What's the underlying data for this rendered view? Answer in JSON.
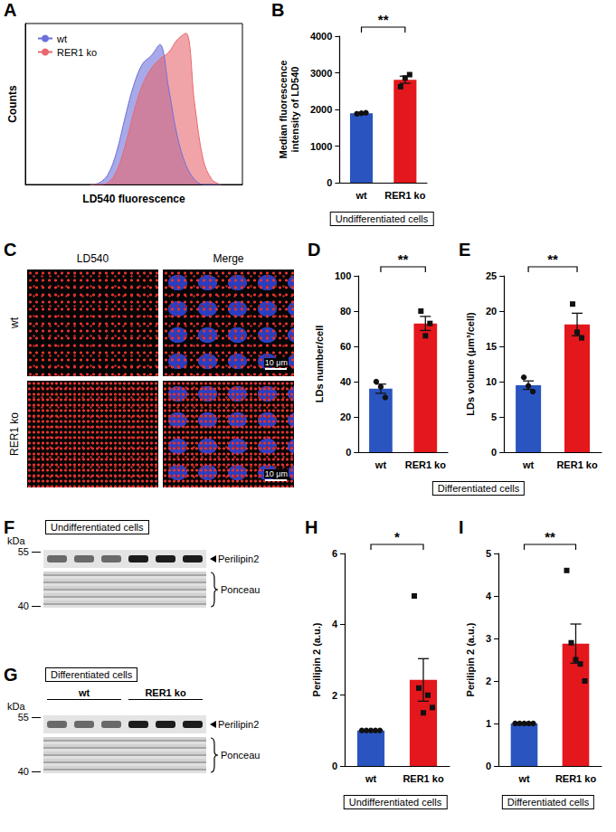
{
  "chart_data": [
    {
      "panel": "A",
      "type": "line",
      "x": [
        30,
        34,
        38,
        42,
        46,
        50,
        54,
        58,
        62,
        66,
        70,
        74,
        78,
        82,
        86,
        90
      ],
      "series": [
        {
          "name": "wt",
          "color": "#6c70d8",
          "values": [
            0,
            1,
            6,
            20,
            42,
            62,
            75,
            80,
            87,
            60,
            30,
            12,
            3,
            0,
            0,
            0
          ]
        },
        {
          "name": "RER1 ko",
          "color": "#e8686e",
          "values": [
            0,
            0,
            1,
            8,
            24,
            45,
            62,
            72,
            78,
            82,
            90,
            94,
            50,
            15,
            3,
            0
          ]
        }
      ],
      "xlabel": "LD540 fluorescence",
      "ylabel": "Counts",
      "xlim": [
        0,
        100
      ],
      "ylim": [
        0,
        100
      ],
      "xticks": [],
      "yticks": [],
      "tick_labels": false,
      "legend": "upper left",
      "grid": false
    },
    {
      "panel": "B",
      "type": "bar",
      "categories": [
        "wt",
        "RER1 ko"
      ],
      "values": [
        1893,
        2810
      ],
      "errors": [
        8,
        97
      ],
      "points": [
        {
          "marker": "circle",
          "values": [
            1880,
            1895,
            1905
          ]
        },
        {
          "marker": "square",
          "values": [
            2620,
            2860,
            2950
          ]
        }
      ],
      "colors": [
        "#2a55c0",
        "#e3171c"
      ],
      "ylabel": "Median fluorescence intensity of LD540",
      "ylim": [
        0,
        4000
      ],
      "yticks": [
        0,
        1000,
        2000,
        3000,
        4000
      ],
      "annotations": [
        "**"
      ],
      "grid": false
    },
    {
      "panel": "D",
      "type": "bar",
      "categories": [
        "wt",
        "RER1 ko"
      ],
      "values": [
        36,
        73
      ],
      "errors": [
        2.6,
        4.0
      ],
      "points": [
        {
          "marker": "circle",
          "values": [
            40,
            37,
            31
          ]
        },
        {
          "marker": "square",
          "values": [
            80,
            66,
            73
          ]
        }
      ],
      "colors": [
        "#2a55c0",
        "#e3171c"
      ],
      "ylabel": "LDs number/cell",
      "ylim": [
        0,
        100
      ],
      "yticks": [
        0,
        20,
        40,
        60,
        80,
        100
      ],
      "annotations": [
        "**"
      ],
      "grid": false
    },
    {
      "panel": "E",
      "type": "bar",
      "categories": [
        "wt",
        "RER1 ko"
      ],
      "values": [
        9.5,
        18.1
      ],
      "errors": [
        0.6,
        1.6
      ],
      "points": [
        {
          "marker": "circle",
          "values": [
            10.6,
            9.4,
            8.6
          ]
        },
        {
          "marker": "square",
          "values": [
            21,
            17,
            16.2
          ]
        }
      ],
      "colors": [
        "#2a55c0",
        "#e3171c"
      ],
      "ylabel": "LDs volume (μm³/cell)",
      "ylim": [
        0,
        25
      ],
      "yticks": [
        0,
        5,
        10,
        15,
        20,
        25
      ],
      "annotations": [
        "**"
      ],
      "grid": false
    },
    {
      "panel": "H",
      "type": "bar",
      "categories": [
        "wt",
        "RER1 ko"
      ],
      "values": [
        1,
        2.43
      ],
      "errors": [
        0,
        0.6
      ],
      "points": [
        {
          "marker": "circle",
          "values": [
            1,
            1,
            1,
            1,
            1
          ]
        },
        {
          "marker": "square",
          "values": [
            4.8,
            2.2,
            1.5,
            2.0,
            1.65
          ]
        }
      ],
      "colors": [
        "#2a55c0",
        "#e3171c"
      ],
      "ylabel": "Perilipin 2 (a.u.)",
      "ylim": [
        0,
        6
      ],
      "yticks": [
        0,
        2,
        4,
        6
      ],
      "annotations": [
        "*"
      ],
      "grid": false
    },
    {
      "panel": "I",
      "type": "bar",
      "categories": [
        "wt",
        "RER1 ko"
      ],
      "values": [
        1,
        2.88
      ],
      "errors": [
        0,
        0.46
      ],
      "points": [
        {
          "marker": "circle",
          "values": [
            1,
            1,
            1,
            1,
            1
          ]
        },
        {
          "marker": "square",
          "values": [
            4.6,
            2.9,
            2.5,
            2.4,
            2.0
          ]
        }
      ],
      "colors": [
        "#2a55c0",
        "#e3171c"
      ],
      "ylabel": "Perilipin 2 (a.u.)",
      "ylim": [
        0,
        5
      ],
      "yticks": [
        0,
        1,
        2,
        3,
        4,
        5
      ],
      "annotations": [
        "**"
      ],
      "grid": false
    }
  ],
  "captions": [
    {
      "text": "Undifferentiated cells",
      "panels": [
        "B"
      ]
    },
    {
      "text": "Differentiated cells",
      "panels": [
        "D",
        "E"
      ]
    },
    {
      "text": "Undifferentiated cells",
      "panels": [
        "H"
      ]
    },
    {
      "text": "Differentiated cells",
      "panels": [
        "I"
      ]
    }
  ],
  "image_panels": [
    {
      "panel": "C",
      "columns": [
        "LD540",
        "Merge"
      ],
      "rows": [
        "wt",
        "RER1 ko"
      ],
      "scale_bar": "10 μm"
    },
    {
      "panel": "F",
      "caption": "Undifferentiated cells",
      "unit": "kDa",
      "markers": [
        55,
        40
      ],
      "bands": [
        "Perilipin2",
        "Ponceau"
      ],
      "lanes": 6
    },
    {
      "panel": "G",
      "caption": "Differentiated cells",
      "unit": "kDa",
      "markers": [
        55,
        40
      ],
      "bands": [
        "Perilipin2",
        "Ponceau"
      ],
      "groups": [
        {
          "label": "wt",
          "lanes": 3
        },
        {
          "label": "RER1 ko",
          "lanes": 3
        }
      ]
    }
  ]
}
